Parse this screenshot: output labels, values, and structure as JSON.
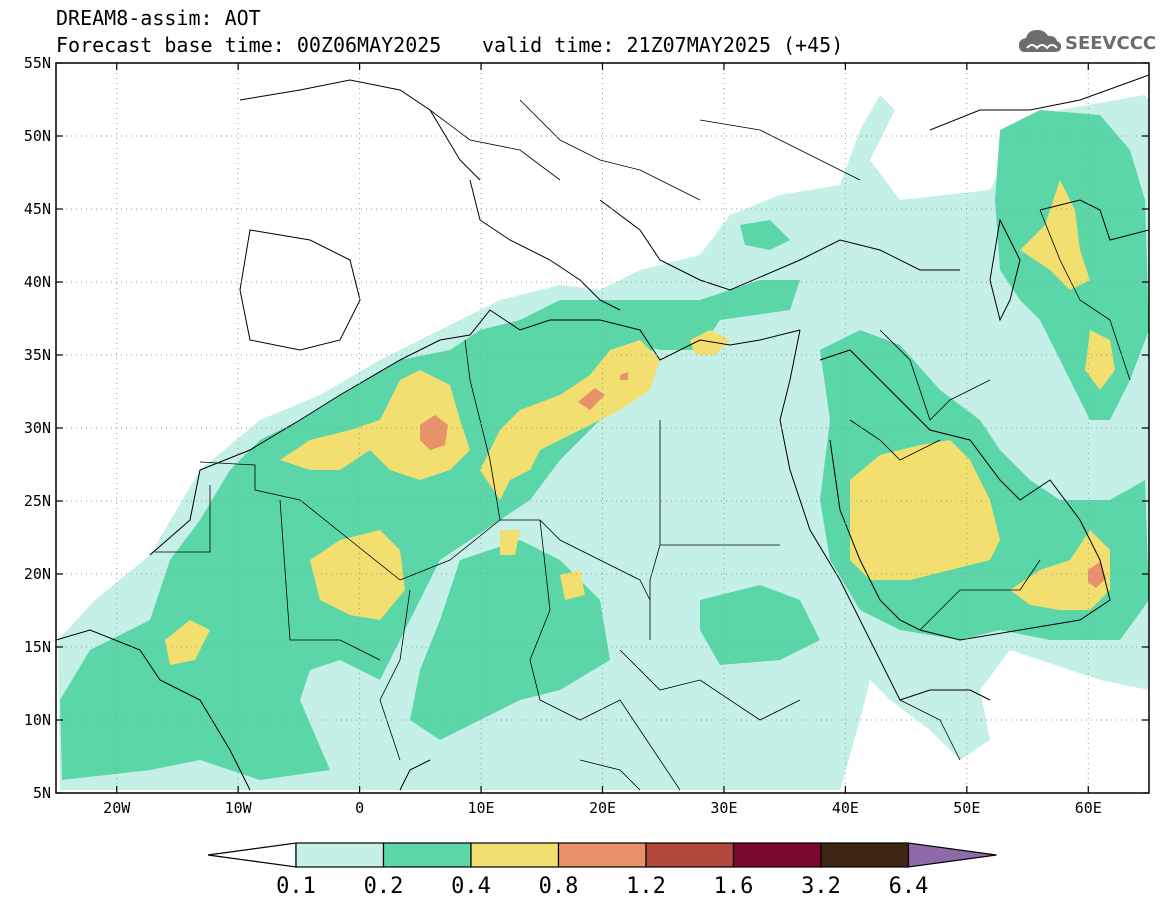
{
  "header": {
    "title": "DREAM8-assim: AOT",
    "base_time": "Forecast base time: 00Z06MAY2025",
    "valid_time": "valid time: 21Z07MAY2025 (+45)"
  },
  "logo": {
    "text": "SEEVCCC",
    "icon": "cloud-logo-icon"
  },
  "axes": {
    "lat_labels": [
      "55N",
      "50N",
      "45N",
      "40N",
      "35N",
      "30N",
      "25N",
      "20N",
      "15N",
      "10N",
      "5N"
    ],
    "lat_values": [
      55,
      50,
      45,
      40,
      35,
      30,
      25,
      20,
      15,
      10,
      5
    ],
    "lon_labels": [
      "20W",
      "10W",
      "0",
      "10E",
      "20E",
      "30E",
      "40E",
      "50E",
      "60E"
    ],
    "lon_values": [
      -20,
      -10,
      0,
      10,
      20,
      30,
      40,
      50,
      60
    ],
    "lon_range": [
      -25,
      65
    ],
    "lat_range": [
      5,
      55
    ],
    "grid": "dotted"
  },
  "colorbar": {
    "labels": [
      "0.1",
      "0.2",
      "0.4",
      "0.8",
      "1.2",
      "1.6",
      "3.2",
      "6.4"
    ],
    "colors": [
      "#c5f0e8",
      "#5ad6a8",
      "#f2df70",
      "#e8916a",
      "#b0483c",
      "#7a0a2e",
      "#3e2614",
      "#8e6aa8"
    ],
    "under_color": "#ffffff"
  },
  "fields": {
    "c1": "#c5f0e8",
    "c2": "#5ad6a8",
    "c3": "#f2df70",
    "c4": "#e8916a"
  }
}
